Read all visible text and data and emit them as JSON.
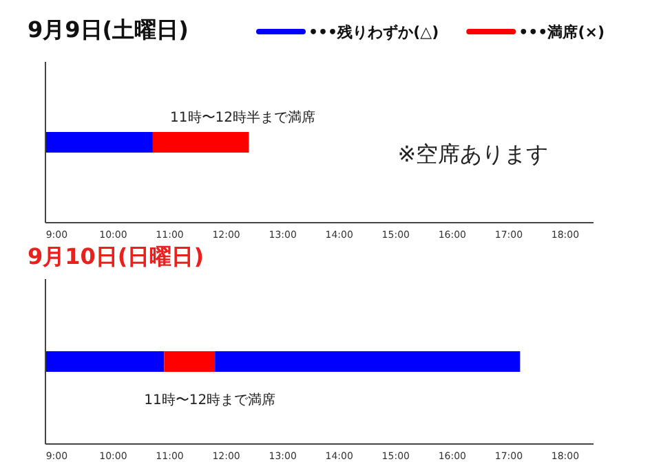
{
  "chart_data": [
    {
      "type": "bar",
      "orientation": "horizontal",
      "title": "9月9日(土曜日)",
      "categories": [
        null
      ],
      "series": [
        {
          "name": "•••残りわずか(△)",
          "color": "#0000ff",
          "base": [
            8.8
          ],
          "values": [
            1.9
          ]
        },
        {
          "name": "•••満席(×)",
          "color": "#ff0000",
          "base": [
            10.7
          ],
          "values": [
            1.7
          ]
        }
      ],
      "xlim": [
        8.8,
        18.5
      ],
      "xticks": [
        {
          "value": 9,
          "label": "9:00"
        },
        {
          "value": 10,
          "label": "10:00"
        },
        {
          "value": 11,
          "label": "11:00"
        },
        {
          "value": 12,
          "label": "12:00"
        },
        {
          "value": 13,
          "label": "13:00"
        },
        {
          "value": 14,
          "label": "14:00"
        },
        {
          "value": 15,
          "label": "15:00"
        },
        {
          "value": 16,
          "label": "16:00"
        },
        {
          "value": 17,
          "label": "17:00"
        },
        {
          "value": 18,
          "label": "18:00"
        }
      ],
      "annotations": [
        "11時〜12時半まで満席",
        "※空席あります"
      ],
      "legend": "top right",
      "tick_labels": "x",
      "grid": false
    },
    {
      "type": "bar",
      "orientation": "horizontal",
      "title": "9月10日(日曜日)",
      "categories": [
        null
      ],
      "series": [
        {
          "color": "#0000ff",
          "base": [
            8.8
          ],
          "values": [
            2.1
          ]
        },
        {
          "color": "#ff0000",
          "base": [
            10.9
          ],
          "values": [
            0.9
          ]
        },
        {
          "color": "#0000ff",
          "base": [
            11.8
          ],
          "values": [
            5.4
          ]
        }
      ],
      "xlim": [
        8.8,
        18.5
      ],
      "xticks": [
        {
          "value": 9,
          "label": "9:00"
        },
        {
          "value": 10,
          "label": "10:00"
        },
        {
          "value": 11,
          "label": "11:00"
        },
        {
          "value": 12,
          "label": "12:00"
        },
        {
          "value": 13,
          "label": "13:00"
        },
        {
          "value": 14,
          "label": "14:00"
        },
        {
          "value": 15,
          "label": "15:00"
        },
        {
          "value": 16,
          "label": "16:00"
        },
        {
          "value": 17,
          "label": "17:00"
        },
        {
          "value": 18,
          "label": "18:00"
        }
      ],
      "annotations": [
        "11時〜12時まで満席"
      ],
      "tick_labels": "x",
      "grid": false
    }
  ]
}
